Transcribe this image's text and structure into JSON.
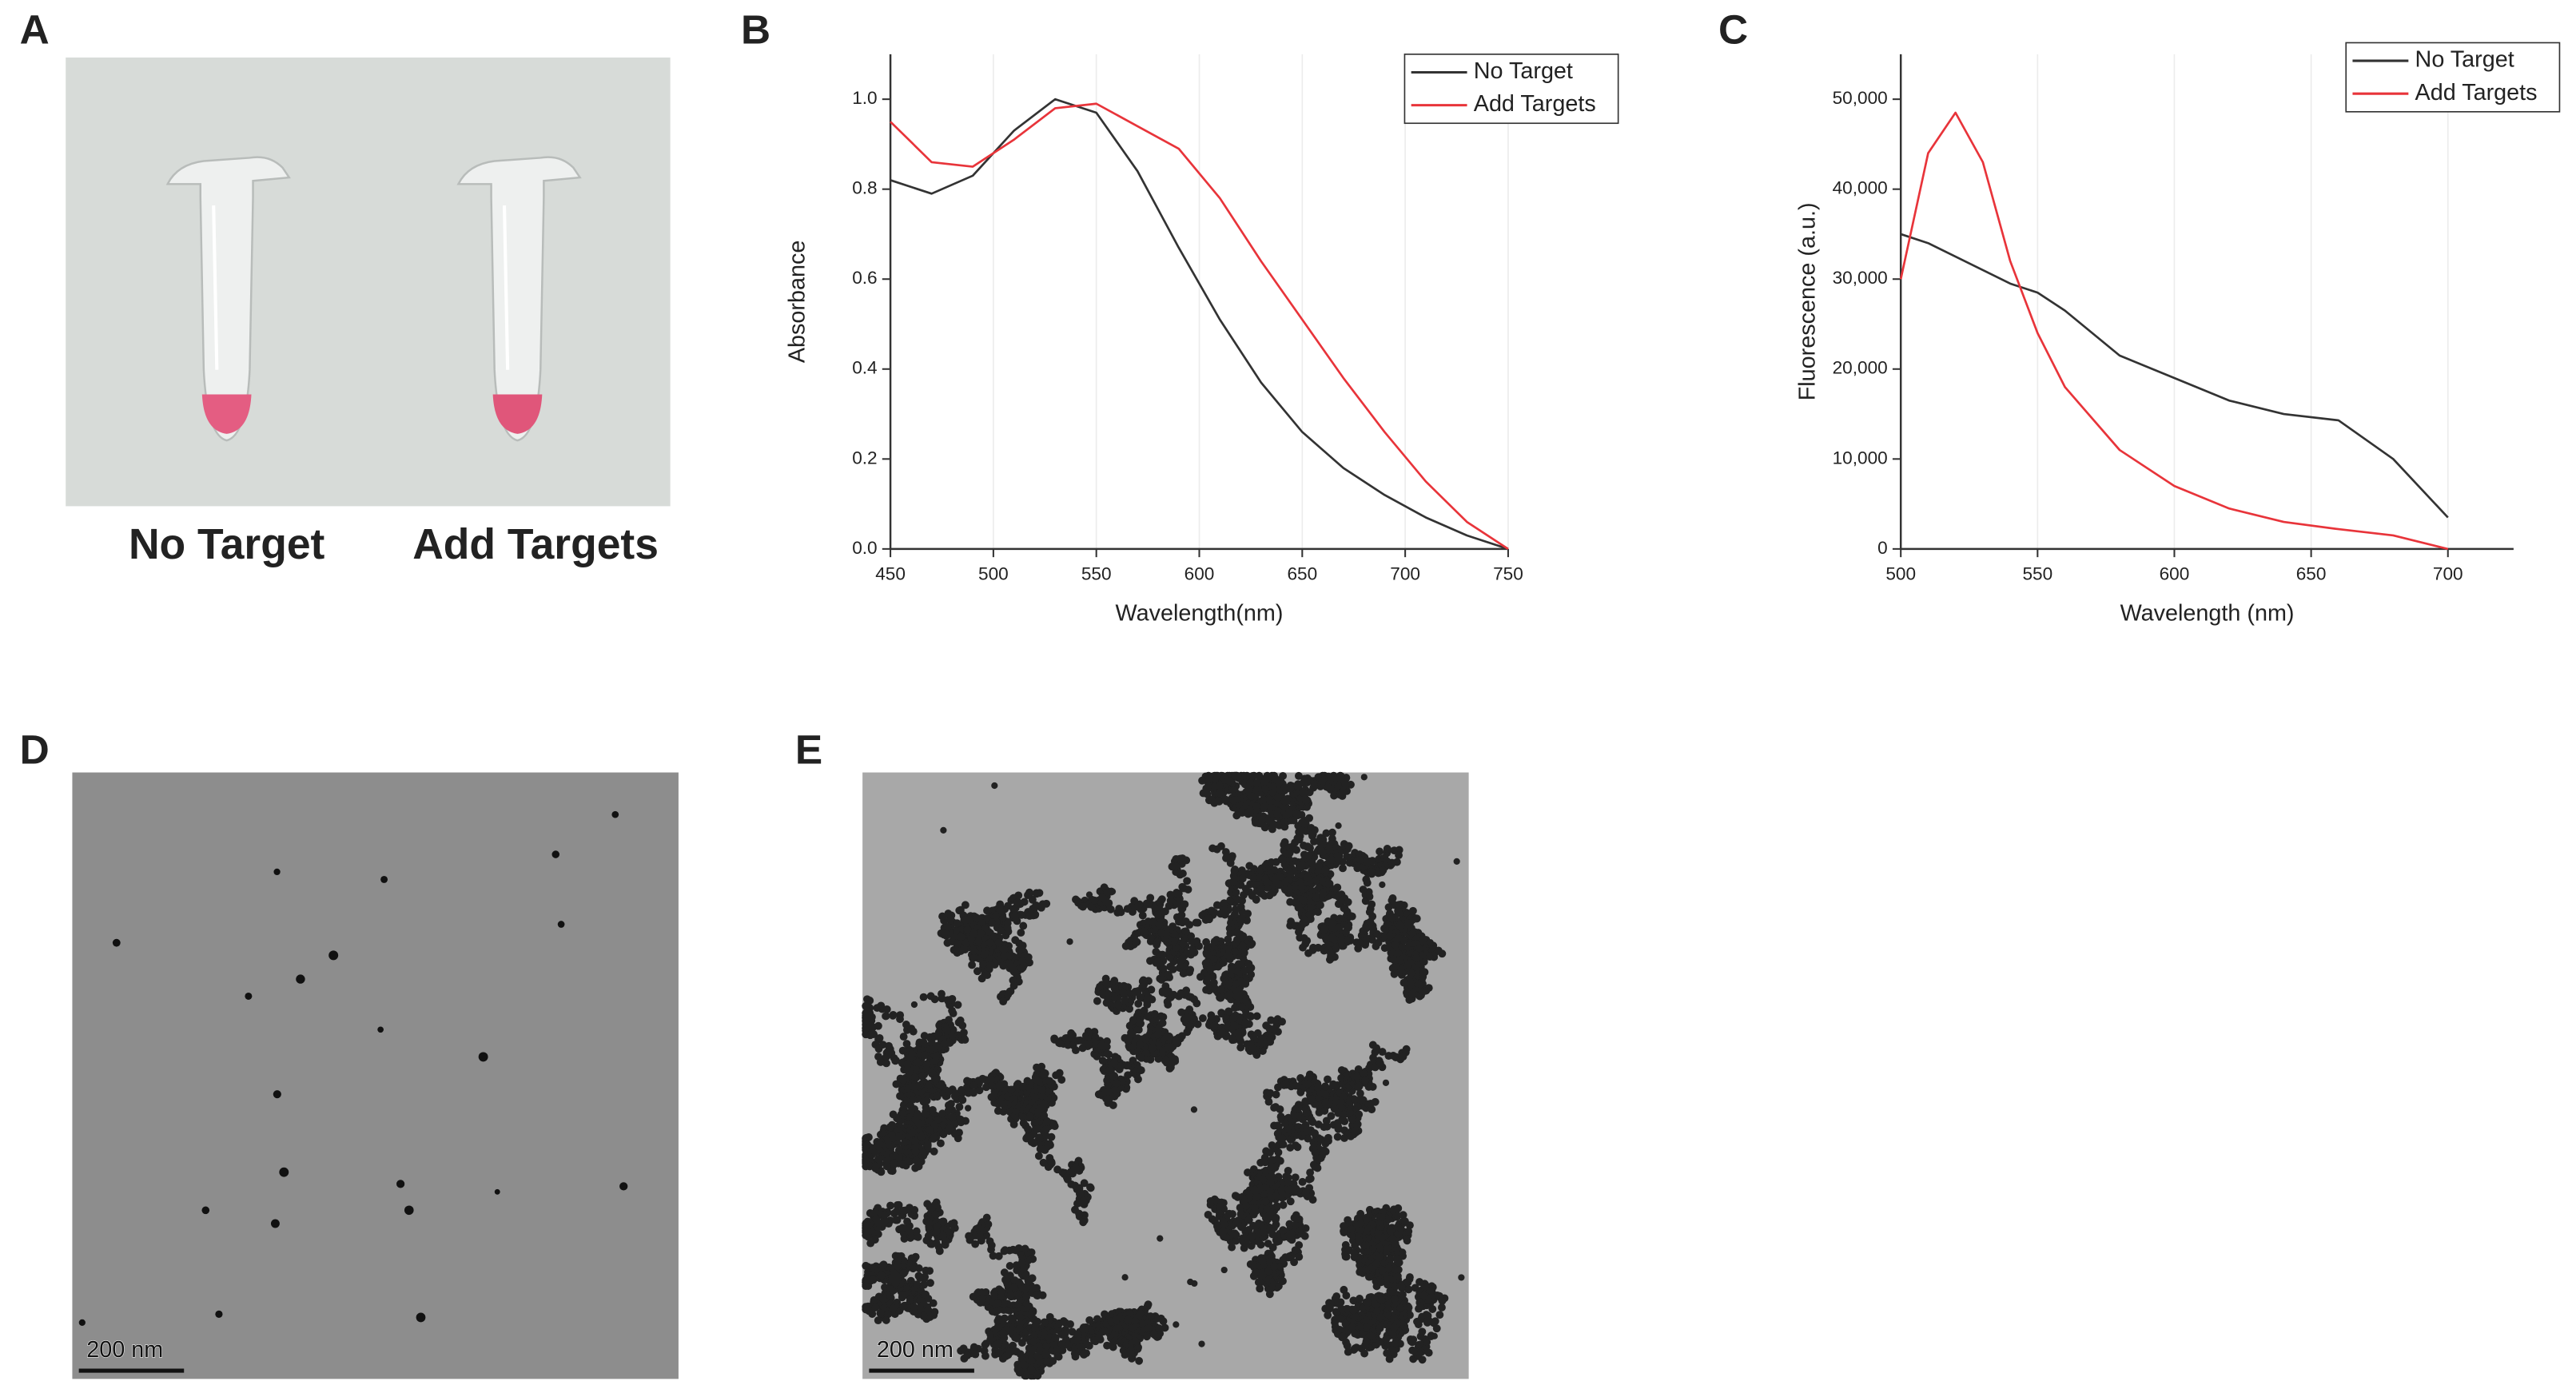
{
  "panel_labels": [
    "A",
    "B",
    "C",
    "D",
    "E"
  ],
  "photo": {
    "labels": [
      "No Target",
      "Add Targets"
    ]
  },
  "tem": {
    "scale_bars": [
      "200 nm",
      "200 nm"
    ]
  },
  "chart_data": [
    {
      "type": "line",
      "x_label": "Wavelength(nm)",
      "y_label": "Absorbance",
      "x": [
        450,
        470,
        490,
        510,
        530,
        550,
        570,
        590,
        610,
        630,
        650,
        670,
        690,
        710,
        730,
        750
      ],
      "series": [
        {
          "name": "No Target",
          "color": "#333333",
          "values": [
            0.82,
            0.79,
            0.83,
            0.93,
            1.0,
            0.97,
            0.84,
            0.67,
            0.51,
            0.37,
            0.26,
            0.18,
            0.12,
            0.07,
            0.03,
            0.0
          ]
        },
        {
          "name": "Add Targets",
          "color": "#e8343a",
          "values": [
            0.95,
            0.86,
            0.85,
            0.91,
            0.98,
            0.99,
            0.94,
            0.89,
            0.78,
            0.64,
            0.51,
            0.38,
            0.26,
            0.15,
            0.06,
            0.0
          ]
        }
      ],
      "xlim": [
        450,
        750
      ],
      "xticks": [
        450,
        500,
        550,
        600,
        650,
        700,
        750
      ],
      "ylim": [
        0,
        1.1
      ],
      "yticks": [
        {
          "value": 0,
          "label": "0.0"
        },
        0.2,
        0.4,
        0.6,
        0.8,
        {
          "value": 1,
          "label": "1.0"
        }
      ],
      "grid": true,
      "legend": "top-right"
    },
    {
      "type": "line",
      "x_label": "Wavelength (nm)",
      "y_label": "Fluorescence (a.u.)",
      "x": [
        500,
        510,
        520,
        530,
        540,
        550,
        560,
        580,
        600,
        620,
        640,
        660,
        680,
        700
      ],
      "series": [
        {
          "name": "No Target",
          "color": "#333333",
          "values": [
            35000,
            34000,
            32500,
            31000,
            29500,
            28500,
            26500,
            21500,
            19000,
            16500,
            15000,
            14300,
            10000,
            3500
          ]
        },
        {
          "name": "Add Targets",
          "color": "#e8343a",
          "values": [
            30000,
            44000,
            48500,
            43000,
            32000,
            24000,
            18000,
            11000,
            7000,
            4500,
            3000,
            2200,
            1500,
            0
          ]
        }
      ],
      "xlim": [
        500,
        724
      ],
      "xticks": [
        500,
        550,
        600,
        650,
        700
      ],
      "ylim": [
        0,
        55000
      ],
      "yticks": [
        0,
        {
          "value": 10000,
          "label": "10,000"
        },
        {
          "value": 20000,
          "label": "20,000"
        },
        {
          "value": 30000,
          "label": "30,000"
        },
        {
          "value": 40000,
          "label": "40,000"
        },
        {
          "value": 50000,
          "label": "50,000"
        }
      ],
      "grid": true,
      "legend": "top-right"
    }
  ]
}
